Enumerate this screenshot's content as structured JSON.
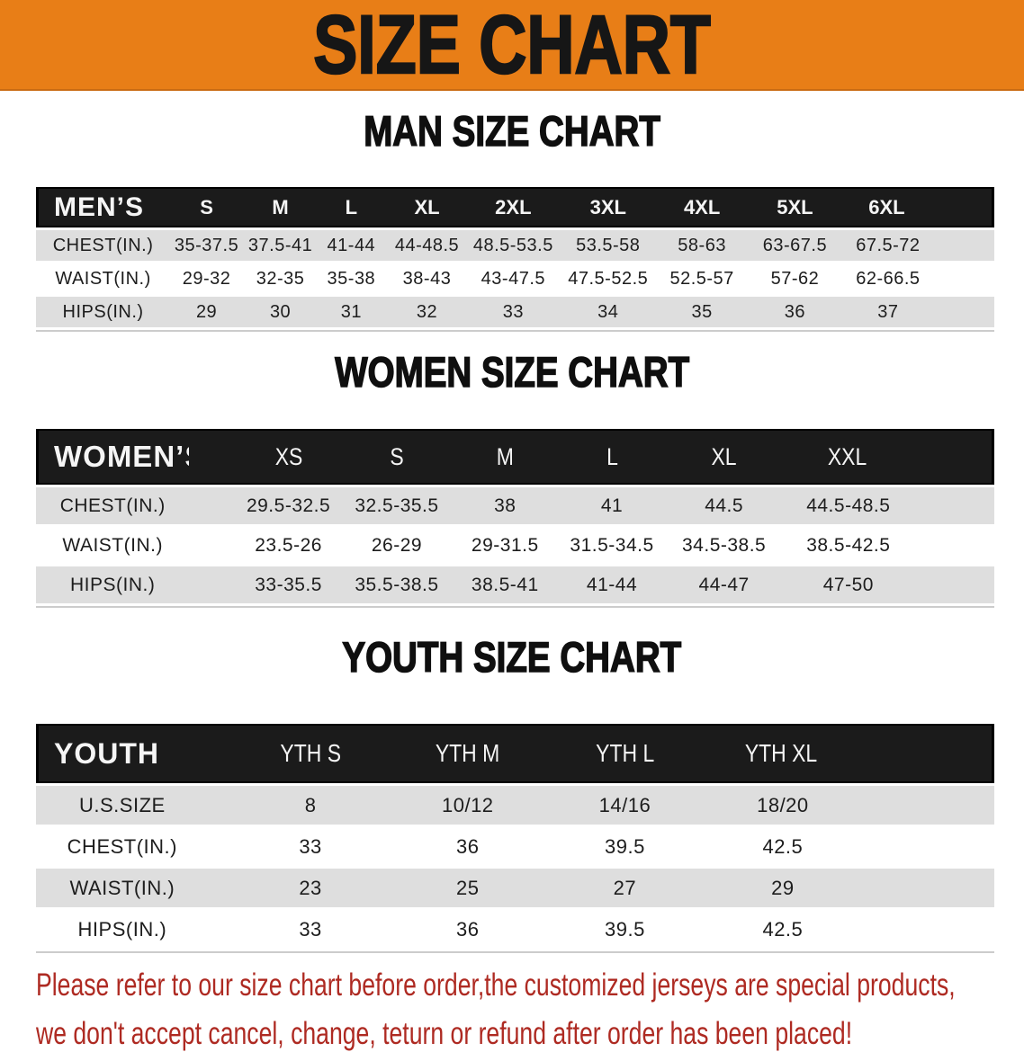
{
  "banner": {
    "title": "SIZE CHART",
    "bg_color": "#e87e17",
    "text_color": "#161616"
  },
  "sections": [
    {
      "heading": "MAN SIZE CHART",
      "table": {
        "header_label": "MEN’S",
        "sizes": [
          "S",
          "M",
          "L",
          "XL",
          "2XL",
          "3XL",
          "4XL",
          "5XL",
          "6XL"
        ],
        "rows": [
          {
            "label": "CHEST(IN.)",
            "values": [
              "35-37.5",
              "37.5-41",
              "41-44",
              "44-48.5",
              "48.5-53.5",
              "53.5-58",
              "58-63",
              "63-67.5",
              "67.5-72"
            ]
          },
          {
            "label": "WAIST(IN.)",
            "values": [
              "29-32",
              "32-35",
              "35-38",
              "38-43",
              "43-47.5",
              "47.5-52.5",
              "52.5-57",
              "57-62",
              "62-66.5"
            ]
          },
          {
            "label": "HIPS(IN.)",
            "values": [
              "29",
              "30",
              "31",
              "32",
              "33",
              "34",
              "35",
              "36",
              "37"
            ]
          }
        ]
      }
    },
    {
      "heading": "WOMEN SIZE CHART",
      "table": {
        "header_label": "WOMEN’S",
        "sizes": [
          "XS",
          "S",
          "M",
          "L",
          "XL",
          "XXL"
        ],
        "rows": [
          {
            "label": "CHEST(IN.)",
            "values": [
              "29.5-32.5",
              "32.5-35.5",
              "38",
              "41",
              "44.5",
              "44.5-48.5"
            ]
          },
          {
            "label": "WAIST(IN.)",
            "values": [
              "23.5-26",
              "26-29",
              "29-31.5",
              "31.5-34.5",
              "34.5-38.5",
              "38.5-42.5"
            ]
          },
          {
            "label": "HIPS(IN.)",
            "values": [
              "33-35.5",
              "35.5-38.5",
              "38.5-41",
              "41-44",
              "44-47",
              "47-50"
            ]
          }
        ]
      }
    },
    {
      "heading": "YOUTH SIZE CHART",
      "table": {
        "header_label": "YOUTH",
        "sizes": [
          "YTH S",
          "YTH M",
          "YTH L",
          "YTH XL"
        ],
        "rows": [
          {
            "label": "U.S.SIZE",
            "values": [
              "8",
              "10/12",
              "14/16",
              "18/20"
            ]
          },
          {
            "label": "CHEST(IN.)",
            "values": [
              "33",
              "36",
              "39.5",
              "42.5"
            ]
          },
          {
            "label": "WAIST(IN.)",
            "values": [
              "23",
              "25",
              "27",
              "29"
            ]
          },
          {
            "label": "HIPS(IN.)",
            "values": [
              "33",
              "36",
              "39.5",
              "42.5"
            ]
          }
        ]
      }
    }
  ],
  "footer": {
    "line1": "Please refer to our size chart before order,the customized jerseys are special products,",
    "line2": "we don't accept cancel, change, teturn or refund after order has been placed!",
    "text_color": "#ae2a22"
  },
  "colors": {
    "header_bar": "#1b1b1b",
    "row_stripe": "#dedede"
  }
}
